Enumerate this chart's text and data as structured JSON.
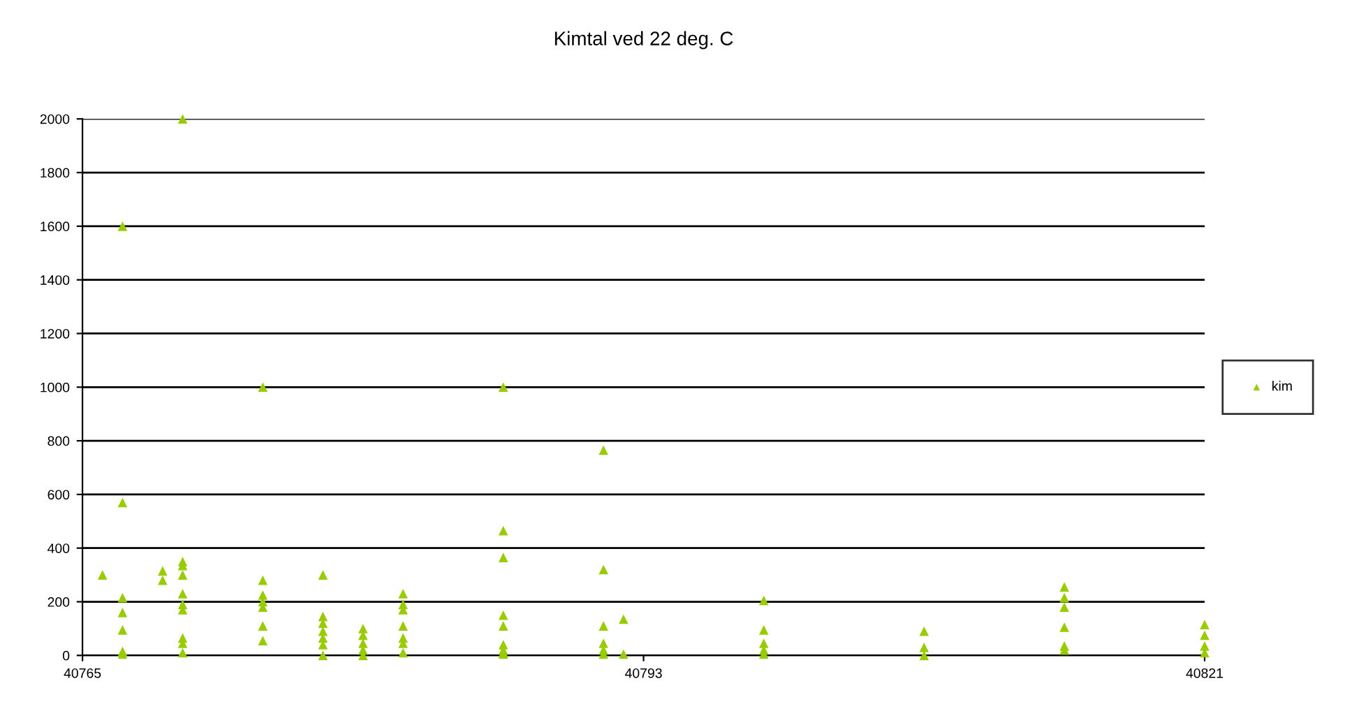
{
  "chart_data": {
    "type": "scatter",
    "title": "Kimtal ved 22 deg. C",
    "series": [
      {
        "name": "kim",
        "color": "#99cc00",
        "x": [
          40766,
          40767,
          40767,
          40767,
          40767,
          40767,
          40767,
          40767,
          40769,
          40769,
          40770,
          40770,
          40770,
          40770,
          40770,
          40770,
          40770,
          40770,
          40770,
          40770,
          40774,
          40774,
          40774,
          40774,
          40774,
          40774,
          40774,
          40777,
          40777,
          40777,
          40777,
          40777,
          40777,
          40777,
          40779,
          40779,
          40779,
          40779,
          40779,
          40781,
          40781,
          40781,
          40781,
          40781,
          40781,
          40781,
          40786,
          40786,
          40786,
          40786,
          40786,
          40786,
          40786,
          40786,
          40786,
          40791,
          40791,
          40791,
          40791,
          40791,
          40791,
          40792,
          40792,
          40799,
          40799,
          40799,
          40799,
          40799,
          40807,
          40807,
          40807,
          40814,
          40814,
          40814,
          40814,
          40814,
          40814,
          40821,
          40821,
          40821,
          40821
        ],
        "values": [
          300,
          1600,
          570,
          215,
          160,
          95,
          15,
          5,
          315,
          280,
          2000,
          350,
          335,
          300,
          230,
          190,
          170,
          65,
          45,
          10,
          1000,
          280,
          225,
          200,
          180,
          110,
          55,
          300,
          145,
          120,
          90,
          65,
          40,
          0,
          100,
          75,
          45,
          20,
          0,
          230,
          190,
          170,
          110,
          65,
          45,
          10,
          1000,
          465,
          365,
          150,
          110,
          40,
          20,
          10,
          5,
          765,
          320,
          110,
          45,
          20,
          5,
          135,
          5,
          205,
          95,
          45,
          20,
          5,
          90,
          30,
          0,
          255,
          215,
          180,
          105,
          35,
          20,
          115,
          75,
          35,
          10
        ]
      }
    ],
    "xlim": [
      40765,
      40821
    ],
    "xticks": [
      40765,
      40793,
      40821
    ],
    "ylim": [
      0,
      2000
    ],
    "yticks": [
      0,
      200,
      400,
      600,
      800,
      1000,
      1200,
      1400,
      1600,
      1800,
      2000
    ],
    "grid": "y",
    "legend": "right",
    "marker": "triangle"
  }
}
